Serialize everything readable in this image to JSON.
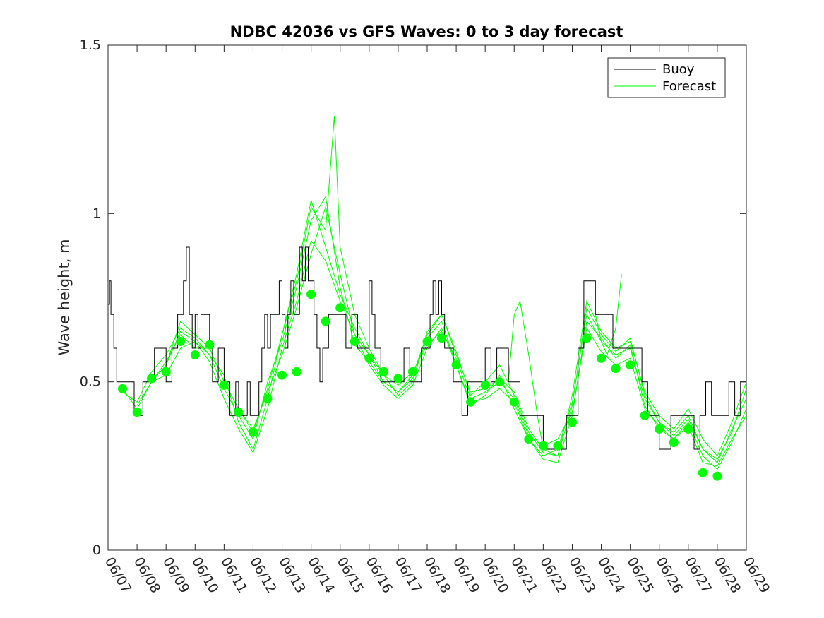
{
  "chart_data": {
    "type": "line",
    "title": "NDBC 42036 vs GFS Waves: 0 to 3 day forecast",
    "xlabel": "",
    "ylabel": "Wave height, m",
    "ylim": [
      0,
      1.5
    ],
    "xlim": [
      7,
      29
    ],
    "x_ticks": [
      "06/07",
      "06/08",
      "06/09",
      "06/10",
      "06/11",
      "06/12",
      "06/13",
      "06/14",
      "06/15",
      "06/16",
      "06/17",
      "06/18",
      "06/19",
      "06/20",
      "06/21",
      "06/22",
      "06/23",
      "06/24",
      "06/25",
      "06/26",
      "06/27",
      "06/28",
      "06/29"
    ],
    "y_ticks": [
      "0",
      "0.5",
      "1",
      "1.5"
    ],
    "legend": {
      "placement": "top-right",
      "entries": [
        "Buoy",
        "Forecast"
      ]
    },
    "colors": {
      "buoy": "#000000",
      "forecast": "#00ff00",
      "axes": "#262626"
    },
    "series": [
      {
        "name": "Buoy",
        "x": [
          7.0,
          7.05,
          7.1,
          7.2,
          7.3,
          7.4,
          7.5,
          7.6,
          7.7,
          7.8,
          7.9,
          8.0,
          8.2,
          8.4,
          8.6,
          8.8,
          9.0,
          9.2,
          9.4,
          9.6,
          9.7,
          9.8,
          9.9,
          10.0,
          10.1,
          10.2,
          10.4,
          10.5,
          10.6,
          10.8,
          10.9,
          11.0,
          11.1,
          11.2,
          11.3,
          11.4,
          11.5,
          11.6,
          11.7,
          11.8,
          11.9,
          12.0,
          12.1,
          12.2,
          12.3,
          12.4,
          12.5,
          12.6,
          12.7,
          12.8,
          12.9,
          13.0,
          13.1,
          13.2,
          13.3,
          13.4,
          13.5,
          13.6,
          13.7,
          13.8,
          13.9,
          14.0,
          14.1,
          14.2,
          14.3,
          14.4,
          14.5,
          14.6,
          14.7,
          14.8,
          15.0,
          15.2,
          15.4,
          15.6,
          15.8,
          16.0,
          16.1,
          16.2,
          16.4,
          16.6,
          16.8,
          17.0,
          17.2,
          17.4,
          17.6,
          17.8,
          18.0,
          18.1,
          18.2,
          18.3,
          18.4,
          18.5,
          18.6,
          18.7,
          18.8,
          18.9,
          19.0,
          19.1,
          19.2,
          19.4,
          19.6,
          19.8,
          20.0,
          20.2,
          20.4,
          20.6,
          20.8,
          21.0,
          21.2,
          21.4,
          21.6,
          21.8,
          22.0,
          22.2,
          22.4,
          22.6,
          22.8,
          23.0,
          23.2,
          23.4,
          23.6,
          23.8,
          24.0,
          24.2,
          24.4,
          24.6,
          24.8,
          25.0,
          25.2,
          25.4,
          25.6,
          25.8,
          26.0,
          26.2,
          26.4,
          26.6,
          26.8,
          27.0,
          27.2,
          27.4,
          27.6,
          27.8,
          28.0,
          28.2,
          28.4,
          28.6,
          28.8,
          29.0
        ],
        "y": [
          0.73,
          0.8,
          0.7,
          0.6,
          0.5,
          0.5,
          0.5,
          0.5,
          0.5,
          0.5,
          0.4,
          0.4,
          0.5,
          0.5,
          0.6,
          0.6,
          0.5,
          0.6,
          0.7,
          0.8,
          0.9,
          0.7,
          0.6,
          0.7,
          0.6,
          0.7,
          0.7,
          0.6,
          0.5,
          0.6,
          0.6,
          0.5,
          0.5,
          0.4,
          0.4,
          0.5,
          0.4,
          0.4,
          0.4,
          0.5,
          0.4,
          0.4,
          0.4,
          0.5,
          0.6,
          0.7,
          0.6,
          0.7,
          0.7,
          0.7,
          0.8,
          0.7,
          0.6,
          0.7,
          0.8,
          0.7,
          0.7,
          0.9,
          0.8,
          0.9,
          0.8,
          0.8,
          0.7,
          0.6,
          0.5,
          0.6,
          0.6,
          0.7,
          0.7,
          0.7,
          0.7,
          0.6,
          0.7,
          0.6,
          0.6,
          0.8,
          0.7,
          0.6,
          0.5,
          0.5,
          0.5,
          0.5,
          0.6,
          0.5,
          0.5,
          0.6,
          0.6,
          0.7,
          0.8,
          0.7,
          0.8,
          0.7,
          0.6,
          0.6,
          0.6,
          0.5,
          0.5,
          0.5,
          0.4,
          0.5,
          0.5,
          0.5,
          0.6,
          0.5,
          0.6,
          0.6,
          0.5,
          0.5,
          0.4,
          0.4,
          0.4,
          0.4,
          0.3,
          0.3,
          0.3,
          0.3,
          0.4,
          0.4,
          0.6,
          0.8,
          0.8,
          0.7,
          0.7,
          0.7,
          0.6,
          0.6,
          0.6,
          0.6,
          0.6,
          0.5,
          0.4,
          0.4,
          0.3,
          0.3,
          0.4,
          0.4,
          0.4,
          0.4,
          0.3,
          0.4,
          0.5,
          0.4,
          0.4,
          0.4,
          0.5,
          0.4,
          0.5,
          0.5
        ]
      },
      {
        "name": "Forecast",
        "x": [
          7.5,
          8.0,
          8.5,
          9.0,
          9.5,
          10.0,
          10.5,
          11.0,
          11.5,
          12.0,
          12.5,
          13.0,
          13.5,
          14.0,
          14.5,
          15.0,
          15.5,
          16.0,
          16.5,
          17.0,
          17.5,
          18.0,
          18.5,
          19.0,
          19.5,
          20.0,
          20.5,
          21.0,
          21.5,
          22.0,
          22.5,
          23.0,
          23.5,
          24.0,
          24.5,
          25.0,
          25.5,
          26.0,
          26.5,
          27.0,
          27.5,
          28.0
        ],
        "y": [
          0.48,
          0.41,
          0.51,
          0.53,
          0.62,
          0.58,
          0.61,
          0.49,
          0.41,
          0.35,
          0.45,
          0.52,
          0.53,
          0.76,
          0.68,
          0.72,
          0.62,
          0.57,
          0.53,
          0.51,
          0.53,
          0.62,
          0.63,
          0.55,
          0.44,
          0.49,
          0.5,
          0.44,
          0.33,
          0.31,
          0.31,
          0.38,
          0.63,
          0.57,
          0.54,
          0.55,
          0.4,
          0.36,
          0.32,
          0.36,
          0.23,
          0.22
        ]
      }
    ],
    "forecast_runs": [
      {
        "x": [
          7.5,
          8.0,
          8.5,
          9.0,
          9.5,
          10.0,
          10.5,
          11.0,
          11.5,
          12.0,
          12.5,
          13.0,
          13.5,
          14.0,
          14.5,
          15.0,
          15.5,
          16.0,
          16.5,
          17.0,
          17.5,
          18.0,
          18.5,
          19.0,
          19.5,
          20.0,
          20.5,
          21.0,
          21.5,
          22.0,
          22.5,
          23.0,
          23.5,
          24.0,
          24.5,
          25.0,
          25.5,
          26.0,
          26.5,
          27.0,
          27.5,
          28.0,
          28.5,
          29.0
        ],
        "y": [
          0.48,
          0.42,
          0.5,
          0.56,
          0.64,
          0.6,
          0.6,
          0.5,
          0.42,
          0.36,
          0.47,
          0.58,
          0.72,
          0.88,
          1.02,
          0.82,
          0.64,
          0.58,
          0.52,
          0.49,
          0.53,
          0.61,
          0.65,
          0.57,
          0.45,
          0.47,
          0.5,
          0.45,
          0.34,
          0.31,
          0.33,
          0.41,
          0.66,
          0.59,
          0.55,
          0.57,
          0.42,
          0.37,
          0.33,
          0.37,
          0.26,
          0.25,
          0.33,
          0.4
        ]
      },
      {
        "x": [
          7.5,
          8.0,
          8.5,
          9.0,
          9.5,
          10.0,
          10.5,
          11.0,
          11.5,
          12.0,
          12.5,
          13.0,
          13.5,
          14.0,
          14.5,
          15.0,
          15.5,
          16.0,
          16.5,
          17.0,
          17.5,
          18.0,
          18.5,
          19.0,
          19.5,
          20.0,
          20.5,
          21.0,
          21.5,
          22.0,
          22.5,
          23.0,
          23.5,
          24.0,
          24.5,
          25.0,
          25.5,
          26.0,
          26.5,
          27.0,
          27.5,
          28.0,
          28.5,
          29.0
        ],
        "y": [
          0.47,
          0.44,
          0.53,
          0.58,
          0.66,
          0.63,
          0.58,
          0.48,
          0.4,
          0.33,
          0.5,
          0.62,
          0.78,
          0.98,
          1.05,
          0.78,
          0.61,
          0.56,
          0.5,
          0.47,
          0.51,
          0.63,
          0.68,
          0.55,
          0.43,
          0.46,
          0.52,
          0.42,
          0.33,
          0.28,
          0.3,
          0.44,
          0.7,
          0.62,
          0.58,
          0.6,
          0.45,
          0.38,
          0.35,
          0.4,
          0.3,
          0.26,
          0.36,
          0.45
        ]
      },
      {
        "x": [
          8.0,
          8.5,
          9.0,
          9.5,
          10.0,
          10.5,
          11.0,
          11.5,
          12.0,
          12.5,
          13.0,
          13.5,
          14.0,
          14.5,
          14.8,
          15.0,
          15.5,
          16.0,
          16.5,
          17.0,
          17.5,
          18.0,
          18.5,
          19.0,
          19.5,
          20.0,
          20.5,
          21.0,
          21.5,
          22.0,
          22.5,
          23.0,
          23.5,
          24.0,
          24.5,
          25.0,
          25.5,
          26.0,
          26.5,
          27.0,
          27.5,
          28.0,
          28.5,
          29.0
        ],
        "y": [
          0.43,
          0.5,
          0.55,
          0.65,
          0.62,
          0.58,
          0.52,
          0.38,
          0.3,
          0.45,
          0.64,
          0.8,
          1.02,
          0.95,
          1.29,
          0.9,
          0.7,
          0.6,
          0.52,
          0.46,
          0.5,
          0.65,
          0.7,
          0.58,
          0.47,
          0.48,
          0.51,
          0.47,
          0.36,
          0.3,
          0.28,
          0.46,
          0.74,
          0.65,
          0.6,
          0.62,
          0.47,
          0.4,
          0.36,
          0.42,
          0.33,
          0.28,
          0.38,
          0.5
        ]
      },
      {
        "x": [
          8.5,
          9.0,
          9.5,
          10.0,
          10.5,
          11.0,
          11.5,
          12.0,
          12.5,
          13.0,
          13.5,
          14.0,
          14.5,
          15.0,
          15.5,
          16.0,
          16.5,
          17.0,
          17.5,
          18.0,
          18.5,
          19.0,
          19.5,
          20.0,
          20.5,
          21.0,
          21.5,
          22.0,
          22.5,
          23.0,
          23.5,
          24.0,
          24.5,
          25.0,
          25.5,
          26.0,
          26.5,
          27.0,
          27.5,
          28.0,
          28.5,
          29.0
        ],
        "y": [
          0.5,
          0.52,
          0.6,
          0.62,
          0.56,
          0.45,
          0.36,
          0.29,
          0.42,
          0.6,
          0.74,
          0.92,
          0.86,
          0.74,
          0.64,
          0.55,
          0.49,
          0.45,
          0.49,
          0.6,
          0.66,
          0.55,
          0.44,
          0.45,
          0.48,
          0.44,
          0.33,
          0.27,
          0.26,
          0.4,
          0.68,
          0.63,
          0.57,
          0.61,
          0.43,
          0.36,
          0.33,
          0.38,
          0.28,
          0.24,
          0.32,
          0.42
        ]
      },
      {
        "x": [
          9.0,
          9.5,
          10.0,
          10.5,
          11.0,
          11.5,
          12.0,
          12.5,
          13.0,
          13.5,
          14.0,
          14.5,
          15.0,
          15.5,
          16.0,
          16.5,
          17.0,
          17.5,
          18.0,
          18.5,
          19.0,
          19.5,
          20.0,
          20.5,
          21.0,
          21.5,
          22.0,
          22.5,
          23.0,
          23.5,
          24.0,
          24.5,
          25.0,
          25.5,
          26.0,
          26.5,
          27.0,
          27.5,
          28.0,
          28.5,
          29.0
        ],
        "y": [
          0.55,
          0.68,
          0.64,
          0.6,
          0.5,
          0.42,
          0.35,
          0.48,
          0.64,
          0.82,
          1.04,
          0.9,
          0.76,
          0.66,
          0.58,
          0.5,
          0.47,
          0.52,
          0.64,
          0.7,
          0.59,
          0.46,
          0.5,
          0.55,
          0.46,
          0.35,
          0.29,
          0.28,
          0.43,
          0.72,
          0.64,
          0.59,
          0.63,
          0.46,
          0.38,
          0.34,
          0.39,
          0.3,
          0.27,
          0.35,
          0.48
        ]
      },
      {
        "x": [
          20.8,
          21.0,
          21.2,
          21.5,
          21.8,
          22.0
        ],
        "y": [
          0.5,
          0.7,
          0.74,
          0.58,
          0.4,
          0.3
        ]
      },
      {
        "x": [
          23.8,
          24.0,
          24.2,
          24.5,
          24.7
        ],
        "y": [
          0.7,
          0.62,
          0.58,
          0.66,
          0.82
        ]
      }
    ]
  }
}
